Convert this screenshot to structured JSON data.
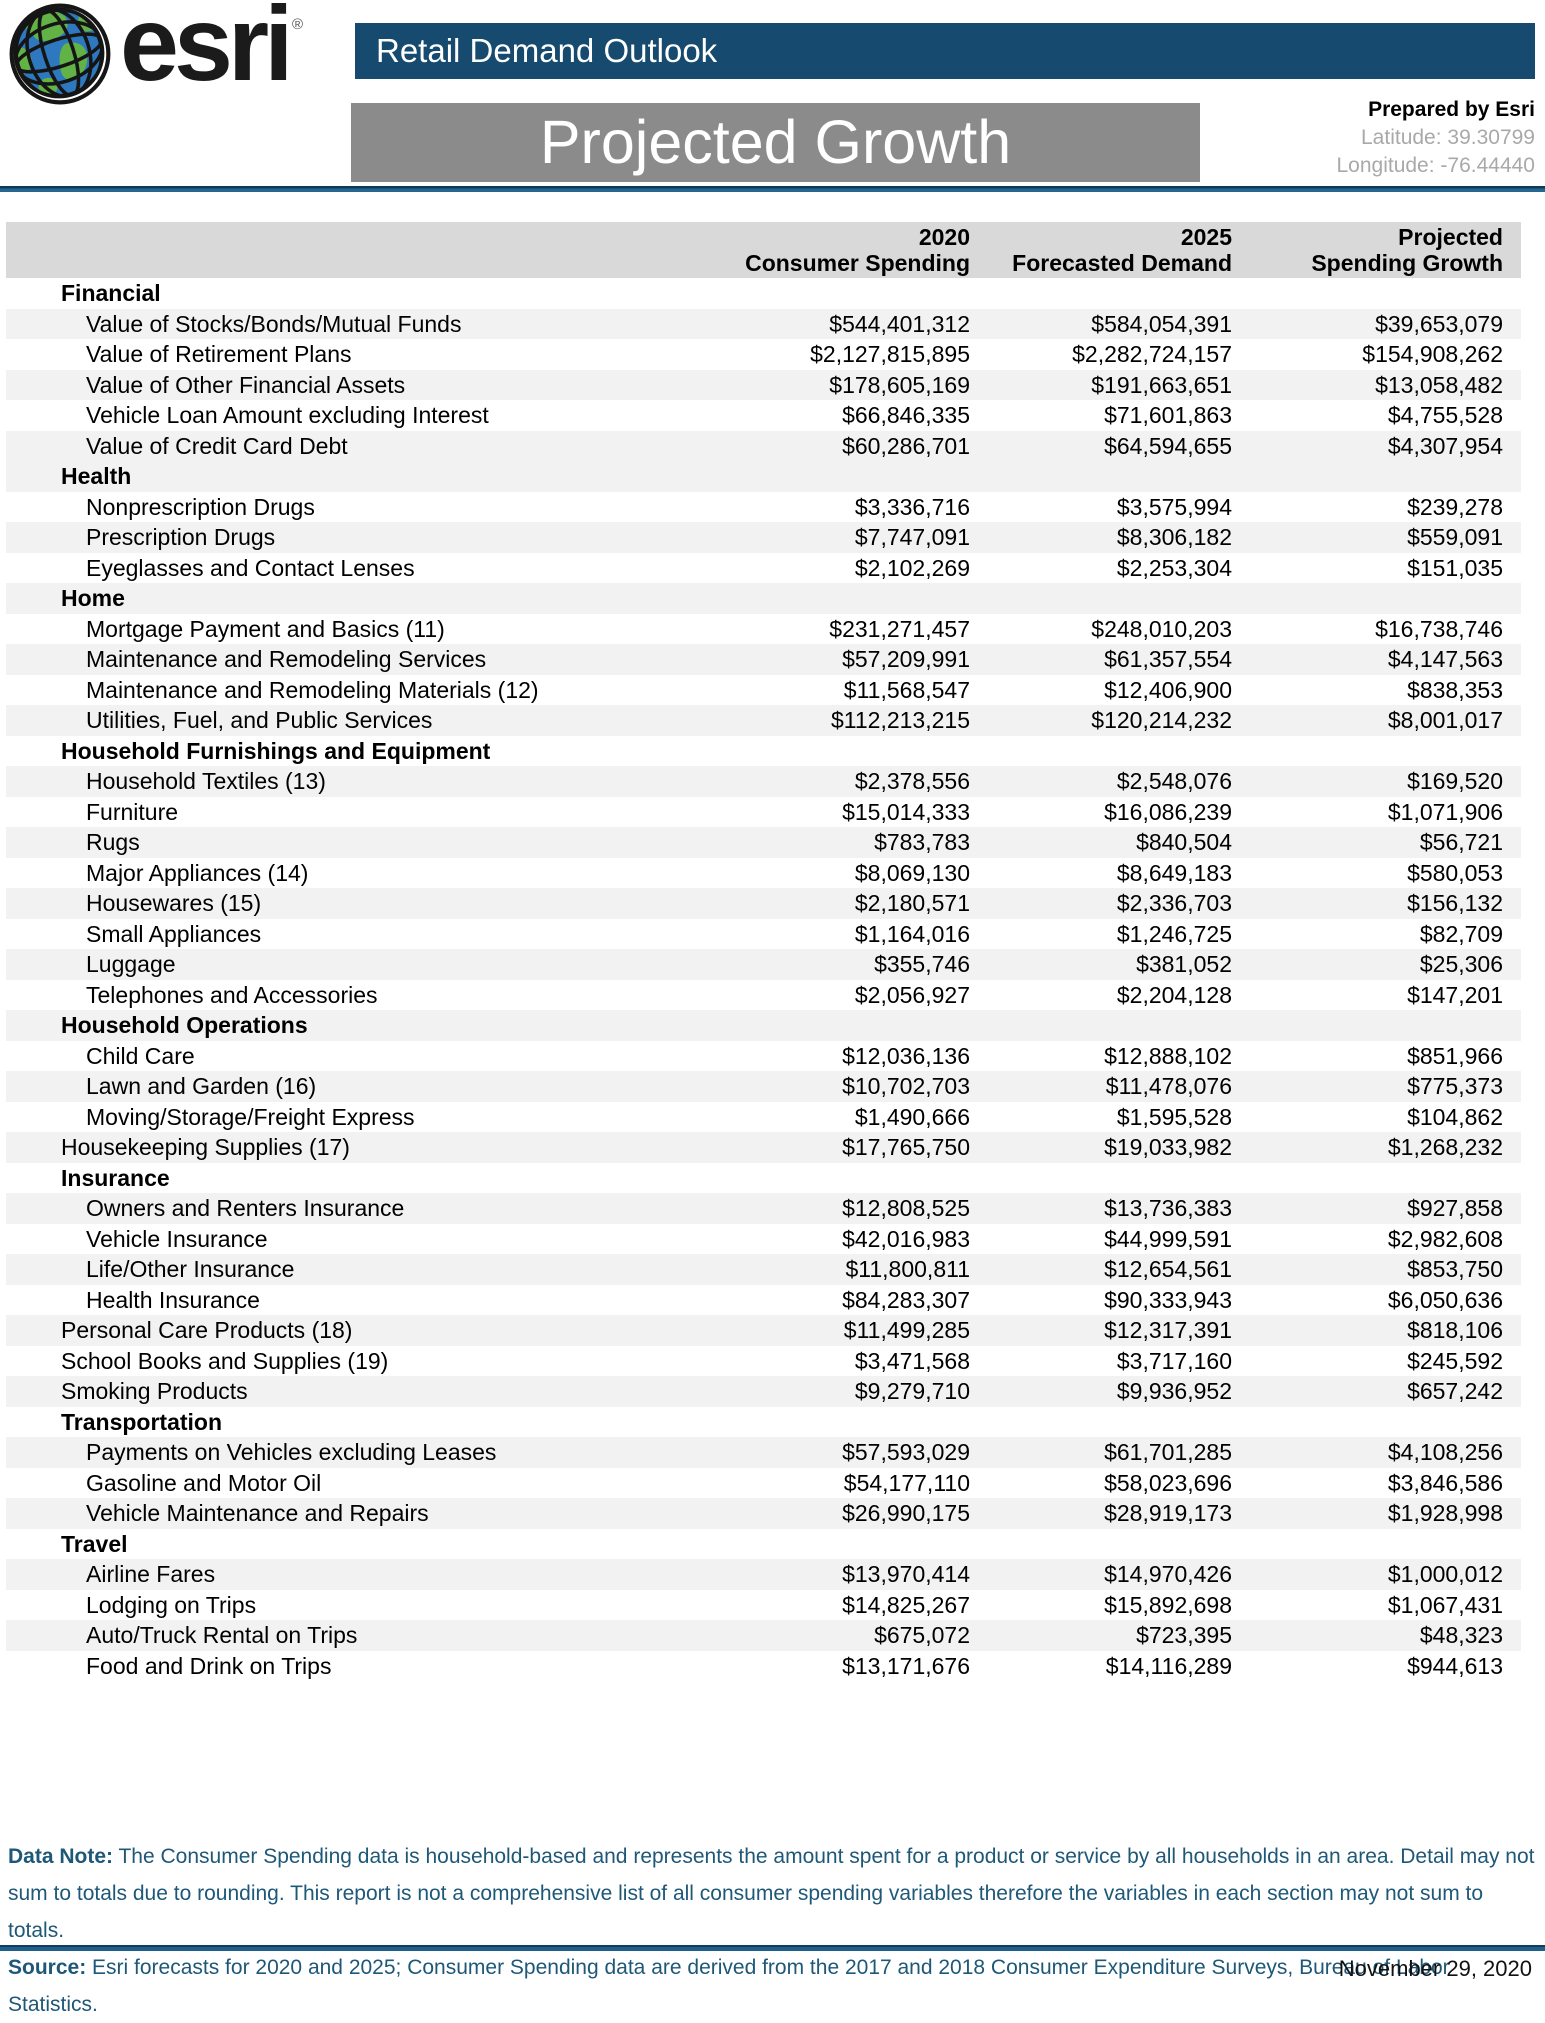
{
  "logo": {
    "brand": "esri",
    "registered": "®"
  },
  "header": {
    "bar_title": "Retail Demand Outlook",
    "page_title": "Projected Growth",
    "prepared_by": "Prepared by Esri",
    "latitude_label": "Latitude: 39.30799",
    "longitude_label": "Longitude: -76.44440"
  },
  "table": {
    "columns": [
      {
        "line1": "2020",
        "line2": "Consumer Spending"
      },
      {
        "line1": "2025",
        "line2": "Forecasted Demand"
      },
      {
        "line1": "Projected",
        "line2": "Spending Growth"
      }
    ],
    "rows": [
      {
        "label": "Financial",
        "type": "section",
        "values": [
          "",
          "",
          ""
        ]
      },
      {
        "label": "Value of Stocks/Bonds/Mutual Funds",
        "type": "item",
        "values": [
          "$544,401,312",
          "$584,054,391",
          "$39,653,079"
        ]
      },
      {
        "label": "Value of Retirement Plans",
        "type": "item",
        "values": [
          "$2,127,815,895",
          "$2,282,724,157",
          "$154,908,262"
        ]
      },
      {
        "label": "Value of Other Financial Assets",
        "type": "item",
        "values": [
          "$178,605,169",
          "$191,663,651",
          "$13,058,482"
        ]
      },
      {
        "label": "Vehicle Loan Amount excluding Interest",
        "type": "item",
        "values": [
          "$66,846,335",
          "$71,601,863",
          "$4,755,528"
        ]
      },
      {
        "label": "Value of Credit Card Debt",
        "type": "item",
        "values": [
          "$60,286,701",
          "$64,594,655",
          "$4,307,954"
        ]
      },
      {
        "label": "Health",
        "type": "section",
        "values": [
          "",
          "",
          ""
        ]
      },
      {
        "label": "Nonprescription Drugs",
        "type": "item",
        "values": [
          "$3,336,716",
          "$3,575,994",
          "$239,278"
        ]
      },
      {
        "label": "Prescription Drugs",
        "type": "item",
        "values": [
          "$7,747,091",
          "$8,306,182",
          "$559,091"
        ]
      },
      {
        "label": "Eyeglasses and Contact Lenses",
        "type": "item",
        "values": [
          "$2,102,269",
          "$2,253,304",
          "$151,035"
        ]
      },
      {
        "label": "Home",
        "type": "section",
        "values": [
          "",
          "",
          ""
        ]
      },
      {
        "label": "Mortgage Payment and Basics (11)",
        "type": "item",
        "values": [
          "$231,271,457",
          "$248,010,203",
          "$16,738,746"
        ]
      },
      {
        "label": "Maintenance and Remodeling Services",
        "type": "item",
        "values": [
          "$57,209,991",
          "$61,357,554",
          "$4,147,563"
        ]
      },
      {
        "label": "Maintenance and Remodeling Materials (12)",
        "type": "item",
        "values": [
          "$11,568,547",
          "$12,406,900",
          "$838,353"
        ]
      },
      {
        "label": "Utilities, Fuel, and Public Services",
        "type": "item",
        "values": [
          "$112,213,215",
          "$120,214,232",
          "$8,001,017"
        ]
      },
      {
        "label": "Household Furnishings and Equipment",
        "type": "section",
        "values": [
          "",
          "",
          ""
        ]
      },
      {
        "label": "Household Textiles (13)",
        "type": "item",
        "values": [
          "$2,378,556",
          "$2,548,076",
          "$169,520"
        ]
      },
      {
        "label": "Furniture",
        "type": "item",
        "values": [
          "$15,014,333",
          "$16,086,239",
          "$1,071,906"
        ]
      },
      {
        "label": "Rugs",
        "type": "item",
        "values": [
          "$783,783",
          "$840,504",
          "$56,721"
        ]
      },
      {
        "label": "Major Appliances (14)",
        "type": "item",
        "values": [
          "$8,069,130",
          "$8,649,183",
          "$580,053"
        ]
      },
      {
        "label": "Housewares (15)",
        "type": "item",
        "values": [
          "$2,180,571",
          "$2,336,703",
          "$156,132"
        ]
      },
      {
        "label": "Small Appliances",
        "type": "item",
        "values": [
          "$1,164,016",
          "$1,246,725",
          "$82,709"
        ]
      },
      {
        "label": "Luggage",
        "type": "item",
        "values": [
          "$355,746",
          "$381,052",
          "$25,306"
        ]
      },
      {
        "label": "Telephones and Accessories",
        "type": "item",
        "values": [
          "$2,056,927",
          "$2,204,128",
          "$147,201"
        ]
      },
      {
        "label": "Household Operations",
        "type": "section",
        "values": [
          "",
          "",
          ""
        ]
      },
      {
        "label": "Child Care",
        "type": "item",
        "values": [
          "$12,036,136",
          "$12,888,102",
          "$851,966"
        ]
      },
      {
        "label": "Lawn and Garden (16)",
        "type": "item",
        "values": [
          "$10,702,703",
          "$11,478,076",
          "$775,373"
        ]
      },
      {
        "label": "Moving/Storage/Freight Express",
        "type": "item",
        "values": [
          "$1,490,666",
          "$1,595,528",
          "$104,862"
        ]
      },
      {
        "label": "Housekeeping Supplies (17)",
        "type": "flush",
        "values": [
          "$17,765,750",
          "$19,033,982",
          "$1,268,232"
        ]
      },
      {
        "label": "Insurance",
        "type": "section",
        "values": [
          "",
          "",
          ""
        ]
      },
      {
        "label": "Owners and Renters Insurance",
        "type": "item",
        "values": [
          "$12,808,525",
          "$13,736,383",
          "$927,858"
        ]
      },
      {
        "label": "Vehicle Insurance",
        "type": "item",
        "values": [
          "$42,016,983",
          "$44,999,591",
          "$2,982,608"
        ]
      },
      {
        "label": "Life/Other Insurance",
        "type": "item",
        "values": [
          "$11,800,811",
          "$12,654,561",
          "$853,750"
        ]
      },
      {
        "label": "Health Insurance",
        "type": "item",
        "values": [
          "$84,283,307",
          "$90,333,943",
          "$6,050,636"
        ]
      },
      {
        "label": "Personal Care Products (18)",
        "type": "flush",
        "values": [
          "$11,499,285",
          "$12,317,391",
          "$818,106"
        ]
      },
      {
        "label": "School Books and Supplies (19)",
        "type": "flush",
        "values": [
          "$3,471,568",
          "$3,717,160",
          "$245,592"
        ]
      },
      {
        "label": "Smoking Products",
        "type": "flush",
        "values": [
          "$9,279,710",
          "$9,936,952",
          "$657,242"
        ]
      },
      {
        "label": "Transportation",
        "type": "section",
        "values": [
          "",
          "",
          ""
        ]
      },
      {
        "label": "Payments on Vehicles excluding Leases",
        "type": "item",
        "values": [
          "$57,593,029",
          "$61,701,285",
          "$4,108,256"
        ]
      },
      {
        "label": "Gasoline and Motor Oil",
        "type": "item",
        "values": [
          "$54,177,110",
          "$58,023,696",
          "$3,846,586"
        ]
      },
      {
        "label": "Vehicle Maintenance and Repairs",
        "type": "item",
        "values": [
          "$26,990,175",
          "$28,919,173",
          "$1,928,998"
        ]
      },
      {
        "label": "Travel",
        "type": "section",
        "values": [
          "",
          "",
          ""
        ]
      },
      {
        "label": "Airline Fares",
        "type": "item",
        "values": [
          "$13,970,414",
          "$14,970,426",
          "$1,000,012"
        ]
      },
      {
        "label": "Lodging on Trips",
        "type": "item",
        "values": [
          "$14,825,267",
          "$15,892,698",
          "$1,067,431"
        ]
      },
      {
        "label": "Auto/Truck Rental on Trips",
        "type": "item",
        "values": [
          "$675,072",
          "$723,395",
          "$48,323"
        ]
      },
      {
        "label": "Food and Drink on Trips",
        "type": "item",
        "values": [
          "$13,171,676",
          "$14,116,289",
          "$944,613"
        ]
      }
    ]
  },
  "footer": {
    "data_note_label": "Data Note:",
    "data_note_text": " The Consumer Spending data is household-based and represents the amount spent for a product or service by all households in an area. Detail may not sum to totals due to rounding.  This report is not a comprehensive list of all consumer spending variables therefore the variables in each section may not sum to totals.",
    "source_label": "Source:",
    "source_text": " Esri forecasts for 2020 and 2025; Consumer Spending data are derived from the 2017 and 2018 Consumer Expenditure Surveys, Bureau of Labor Statistics.",
    "date": "November 29, 2020"
  },
  "colors": {
    "bar_blue": "#164a6e",
    "title_gray": "#8b8b8b",
    "header_band": "#d9d9d9",
    "row_stripe": "#f2f2f2",
    "note_blue": "#1e5878",
    "divider_blue": "#21608a"
  }
}
